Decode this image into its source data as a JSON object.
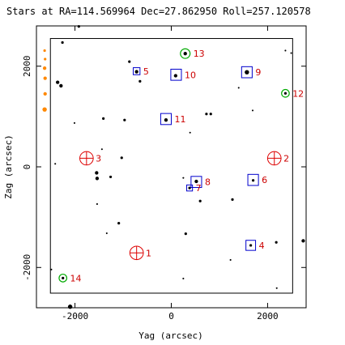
{
  "chart_data": {
    "type": "scatter",
    "title": "Stars at RA=114.569964 Dec=27.862950 Roll=257.120578",
    "xlabel": "Yag (arcsec)",
    "ylabel": "Zag (arcsec)",
    "xlim": [
      -2800,
      2800
    ],
    "ylim": [
      -2800,
      2800
    ],
    "x_ticks": [
      -2000,
      0,
      2000
    ],
    "y_ticks": [
      -2000,
      0,
      2000
    ],
    "grid": false,
    "legend": "none",
    "colors": {
      "acquisition_box": "#0000cc",
      "guide_circle": "#00aa00",
      "fid_marker": "#dd0000",
      "label": "#cc0000",
      "star": "#000000",
      "off_field_star": "#ff8800",
      "ccd_box": "#000000"
    },
    "ccd_box": {
      "x": [
        -2510,
        2520
      ],
      "y": [
        -2510,
        2550
      ]
    },
    "acq_boxes": [
      {
        "id": "5",
        "x": -720,
        "y": 1900,
        "half_size": 70
      },
      {
        "id": "10",
        "x": 100,
        "y": 1830,
        "half_size": 110
      },
      {
        "id": "9",
        "x": 1570,
        "y": 1880,
        "half_size": 110
      },
      {
        "id": "11",
        "x": -110,
        "y": 950,
        "half_size": 110
      },
      {
        "id": "8",
        "x": 520,
        "y": -300,
        "half_size": 110
      },
      {
        "id": "7",
        "x": 380,
        "y": -420,
        "half_size": 60
      },
      {
        "id": "6",
        "x": 1700,
        "y": -260,
        "half_size": 110
      },
      {
        "id": "4",
        "x": 1650,
        "y": -1560,
        "half_size": 100
      }
    ],
    "guide_circles": [
      {
        "id": "13",
        "x": 290,
        "y": 2250,
        "r": 100
      },
      {
        "id": "12",
        "x": 2370,
        "y": 1460,
        "r": 80
      },
      {
        "id": "14",
        "x": -2250,
        "y": -2210,
        "r": 80
      }
    ],
    "fid_markers": [
      {
        "id": "1",
        "x": -720,
        "y": -1710,
        "r": 140
      },
      {
        "id": "2",
        "x": 2140,
        "y": 170,
        "r": 140
      },
      {
        "id": "3",
        "x": -1760,
        "y": 170,
        "r": 140
      }
    ],
    "stars": [
      {
        "x": -720,
        "y": 1890,
        "mag": 3
      },
      {
        "x": 90,
        "y": 1810,
        "mag": 3
      },
      {
        "x": 1570,
        "y": 1880,
        "mag": 4
      },
      {
        "x": -110,
        "y": 930,
        "mag": 3
      },
      {
        "x": 520,
        "y": -290,
        "mag": 3
      },
      {
        "x": 380,
        "y": -420,
        "mag": 2
      },
      {
        "x": 1700,
        "y": -270,
        "mag": 2
      },
      {
        "x": 1650,
        "y": -1560,
        "mag": 2
      },
      {
        "x": 290,
        "y": 2250,
        "mag": 3
      },
      {
        "x": 2370,
        "y": 1460,
        "mag": 2
      },
      {
        "x": -2250,
        "y": -2210,
        "mag": 2
      },
      {
        "x": -1920,
        "y": 2790,
        "mag": 2
      },
      {
        "x": -2260,
        "y": 2470,
        "mag": 2
      },
      {
        "x": -870,
        "y": 2090,
        "mag": 2
      },
      {
        "x": -2360,
        "y": 1680,
        "mag": 3
      },
      {
        "x": -2290,
        "y": 1610,
        "mag": 3
      },
      {
        "x": -650,
        "y": 1700,
        "mag": 2
      },
      {
        "x": -1410,
        "y": 960,
        "mag": 2
      },
      {
        "x": -970,
        "y": 930,
        "mag": 2
      },
      {
        "x": -2010,
        "y": 870,
        "mag": 1
      },
      {
        "x": 730,
        "y": 1050,
        "mag": 2
      },
      {
        "x": 820,
        "y": 1050,
        "mag": 2
      },
      {
        "x": 390,
        "y": 680,
        "mag": 1
      },
      {
        "x": 1400,
        "y": 1570,
        "mag": 1
      },
      {
        "x": 1690,
        "y": 1120,
        "mag": 1
      },
      {
        "x": 2490,
        "y": 2260,
        "mag": 1
      },
      {
        "x": 2370,
        "y": 2310,
        "mag": 1
      },
      {
        "x": -1030,
        "y": 180,
        "mag": 2
      },
      {
        "x": -1440,
        "y": 350,
        "mag": 1
      },
      {
        "x": -2410,
        "y": 60,
        "mag": 1
      },
      {
        "x": -1550,
        "y": -120,
        "mag": 3
      },
      {
        "x": -1540,
        "y": -230,
        "mag": 3
      },
      {
        "x": -1260,
        "y": -200,
        "mag": 2
      },
      {
        "x": -1540,
        "y": -740,
        "mag": 1
      },
      {
        "x": 250,
        "y": -220,
        "mag": 1
      },
      {
        "x": 600,
        "y": -680,
        "mag": 2
      },
      {
        "x": 1270,
        "y": -650,
        "mag": 2
      },
      {
        "x": -1090,
        "y": -1120,
        "mag": 2
      },
      {
        "x": -1340,
        "y": -1320,
        "mag": 1
      },
      {
        "x": 300,
        "y": -1330,
        "mag": 2
      },
      {
        "x": 1230,
        "y": -1850,
        "mag": 1
      },
      {
        "x": 250,
        "y": -2220,
        "mag": 1
      },
      {
        "x": 2180,
        "y": -1500,
        "mag": 2
      },
      {
        "x": 2740,
        "y": -1470,
        "mag": 3
      },
      {
        "x": -2490,
        "y": -2040,
        "mag": 1
      },
      {
        "x": 2190,
        "y": -2410,
        "mag": 1
      },
      {
        "x": -2100,
        "y": -2780,
        "mag": 4
      }
    ],
    "off_field_stars": [
      {
        "x": -2630,
        "y": 2310,
        "mag": 2
      },
      {
        "x": -2620,
        "y": 2140,
        "mag": 2
      },
      {
        "x": -2630,
        "y": 1960,
        "mag": 3
      },
      {
        "x": -2620,
        "y": 1760,
        "mag": 3
      },
      {
        "x": -2620,
        "y": 1450,
        "mag": 3
      },
      {
        "x": -2630,
        "y": 1140,
        "mag": 4
      }
    ]
  }
}
